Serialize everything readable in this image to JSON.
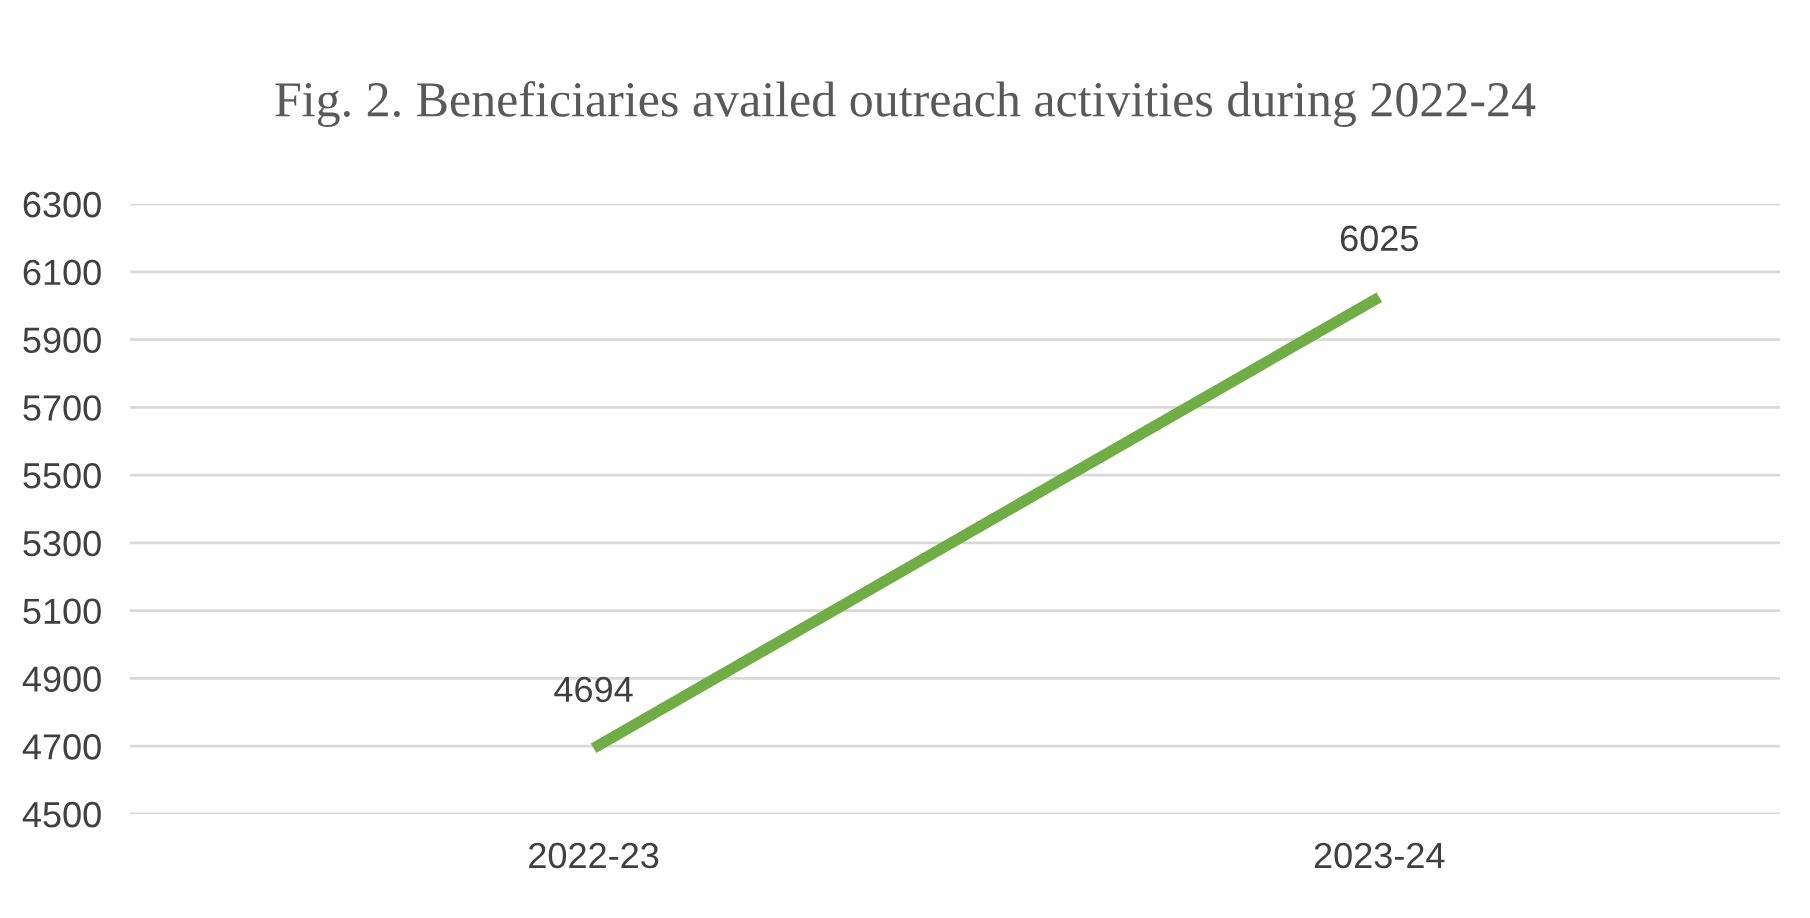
{
  "chart_data": {
    "type": "line",
    "title": "Fig. 2. Beneficiaries availed outreach activities during 2022-24",
    "categories": [
      "2022-23",
      "2023-24"
    ],
    "series": [
      {
        "color": "#70ad47",
        "values": [
          4694,
          6025
        ]
      }
    ],
    "ylim": [
      4500,
      6300
    ],
    "yticks": [
      4500,
      4700,
      4900,
      5100,
      5300,
      5500,
      5700,
      5900,
      6100,
      6300
    ],
    "grid": "y",
    "data_labels": true,
    "marker": "none",
    "line_style": "solid",
    "legend": false
  }
}
